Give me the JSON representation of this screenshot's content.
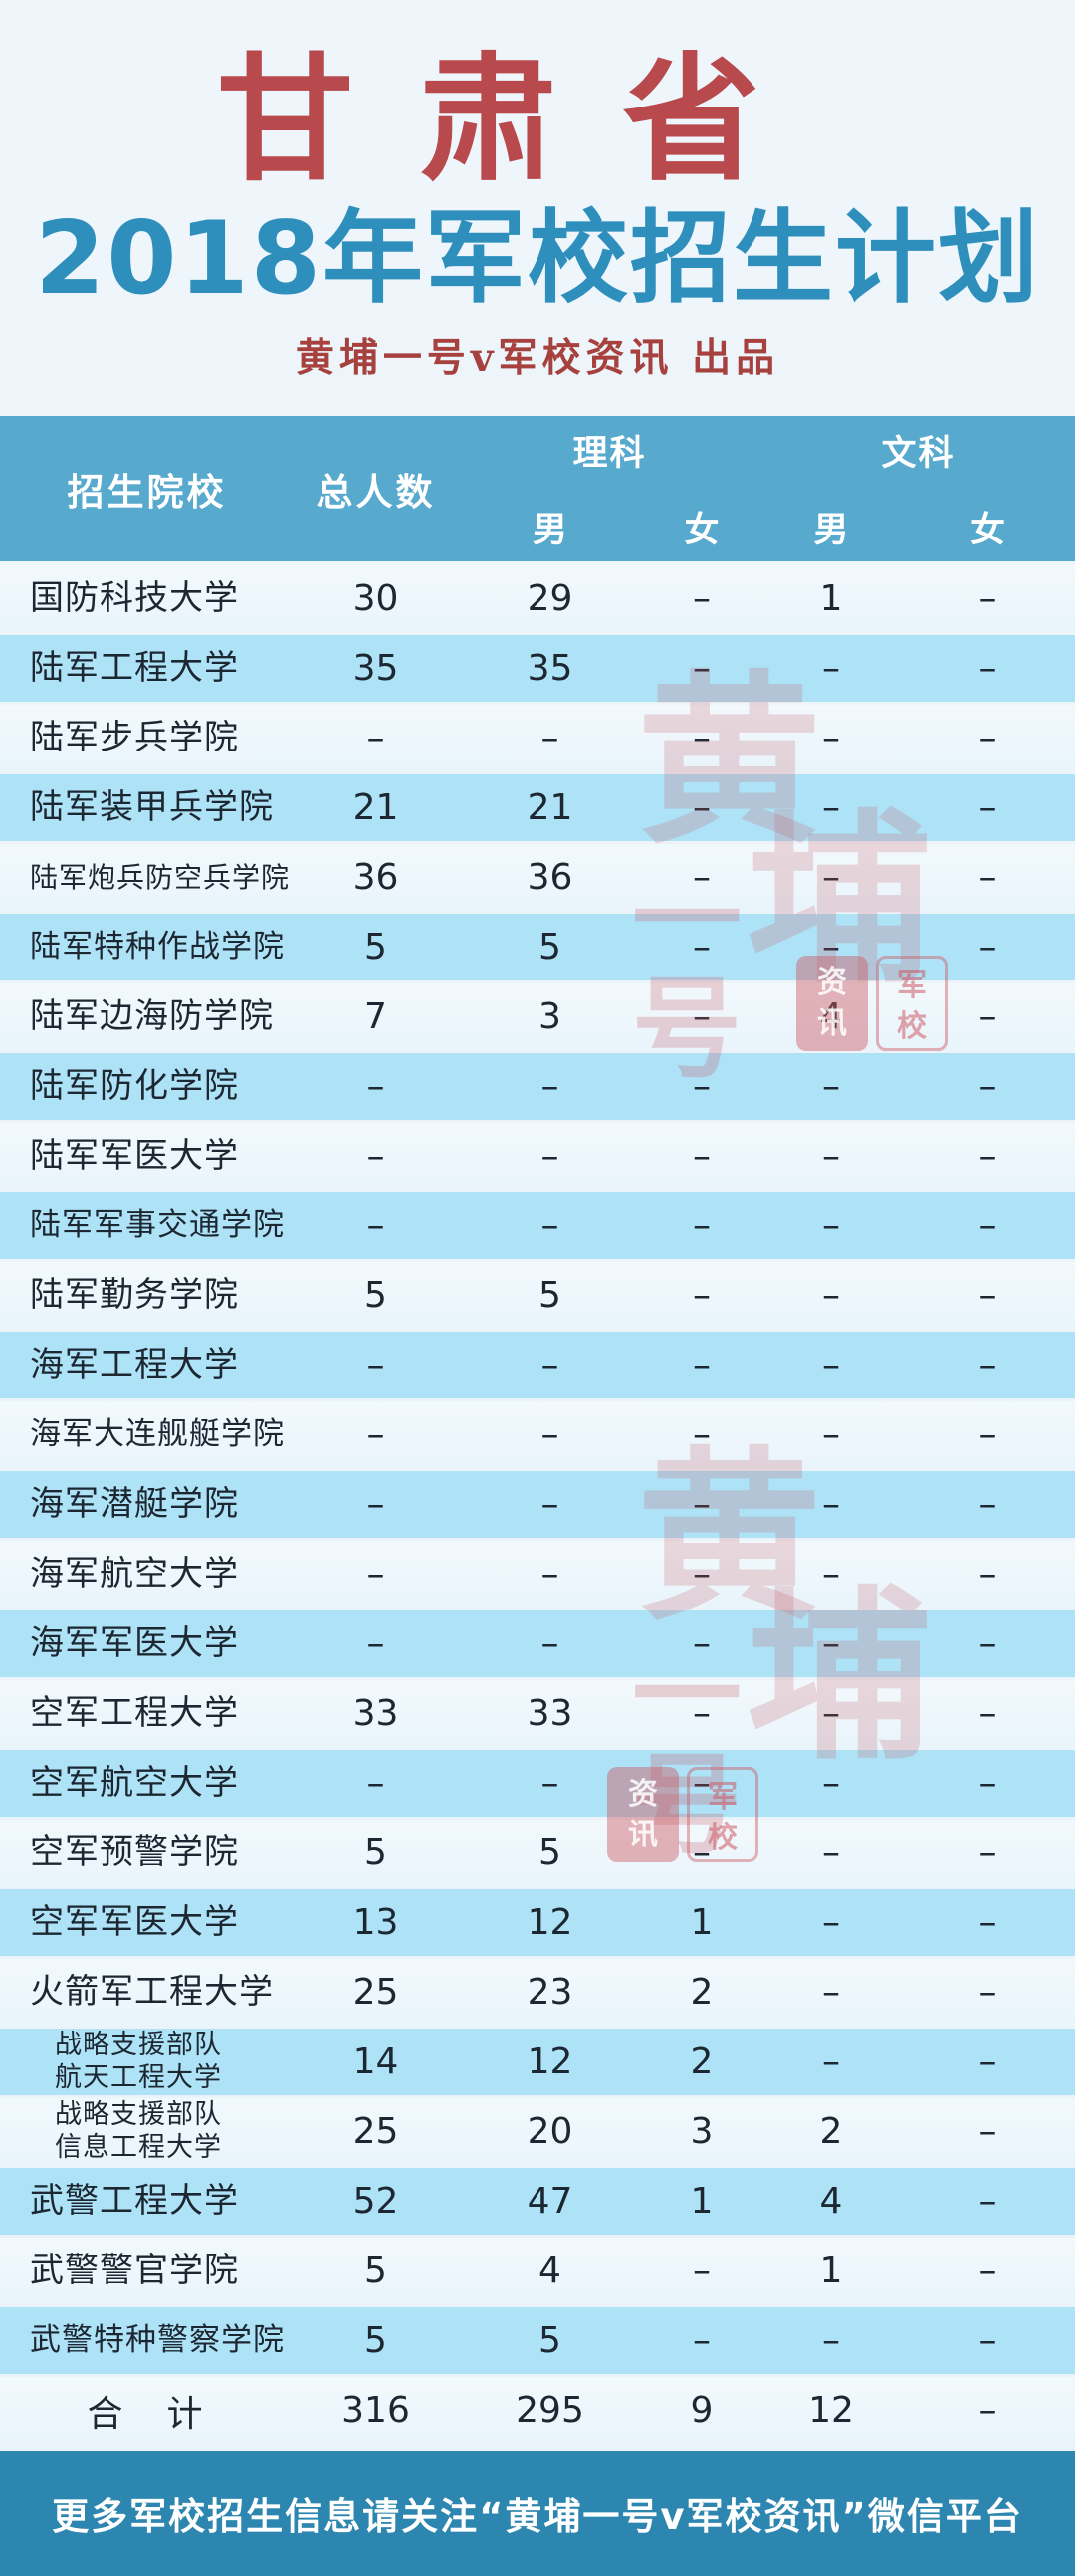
{
  "header": {
    "title": "甘肃省",
    "subtitle": "2018年军校招生计划",
    "byline": "黄埔一号v军校资讯  出品"
  },
  "table": {
    "col_school": "招生院校",
    "col_total": "总人数",
    "col_sci": "理科",
    "col_art": "文科",
    "col_male": "男",
    "col_female": "女"
  },
  "chart_data": {
    "type": "table",
    "title": "甘肃省2018年军校招生计划",
    "columns": [
      "招生院校",
      "总人数",
      "理科男",
      "理科女",
      "文科男",
      "文科女"
    ],
    "rows": [
      [
        "国防科技大学",
        "30",
        "29",
        "–",
        "1",
        "–"
      ],
      [
        "陆军工程大学",
        "35",
        "35",
        "–",
        "–",
        "–"
      ],
      [
        "陆军步兵学院",
        "–",
        "–",
        "–",
        "–",
        "–"
      ],
      [
        "陆军装甲兵学院",
        "21",
        "21",
        "–",
        "–",
        "–"
      ],
      [
        "陆军炮兵防空兵学院",
        "36",
        "36",
        "–",
        "–",
        "–"
      ],
      [
        "陆军特种作战学院",
        "5",
        "5",
        "–",
        "–",
        "–"
      ],
      [
        "陆军边海防学院",
        "7",
        "3",
        "–",
        "4",
        "–"
      ],
      [
        "陆军防化学院",
        "–",
        "–",
        "–",
        "–",
        "–"
      ],
      [
        "陆军军医大学",
        "–",
        "–",
        "–",
        "–",
        "–"
      ],
      [
        "陆军军事交通学院",
        "–",
        "–",
        "–",
        "–",
        "–"
      ],
      [
        "陆军勤务学院",
        "5",
        "5",
        "–",
        "–",
        "–"
      ],
      [
        "海军工程大学",
        "–",
        "–",
        "–",
        "–",
        "–"
      ],
      [
        "海军大连舰艇学院",
        "–",
        "–",
        "–",
        "–",
        "–"
      ],
      [
        "海军潜艇学院",
        "–",
        "–",
        "–",
        "–",
        "–"
      ],
      [
        "海军航空大学",
        "–",
        "–",
        "–",
        "–",
        "–"
      ],
      [
        "海军军医大学",
        "–",
        "–",
        "–",
        "–",
        "–"
      ],
      [
        "空军工程大学",
        "33",
        "33",
        "–",
        "–",
        "–"
      ],
      [
        "空军航空大学",
        "–",
        "–",
        "–",
        "–",
        "–"
      ],
      [
        "空军预警学院",
        "5",
        "5",
        "–",
        "–",
        "–"
      ],
      [
        "空军军医大学",
        "13",
        "12",
        "1",
        "–",
        "–"
      ],
      [
        "火箭军工程大学",
        "25",
        "23",
        "2",
        "–",
        "–"
      ],
      [
        "战略支援部队\n航天工程大学",
        "14",
        "12",
        "2",
        "–",
        "–"
      ],
      [
        "战略支援部队\n信息工程大学",
        "25",
        "20",
        "3",
        "2",
        "–"
      ],
      [
        "武警工程大学",
        "52",
        "47",
        "1",
        "4",
        "–"
      ],
      [
        "武警警官学院",
        "5",
        "4",
        "–",
        "1",
        "–"
      ],
      [
        "武警特种警察学院",
        "5",
        "5",
        "–",
        "–",
        "–"
      ]
    ],
    "total_row": [
      "合　计",
      "316",
      "295",
      "9",
      "12",
      "–"
    ]
  },
  "footer": {
    "text": "更多军校招生信息请关注“黄埔一号v军校资讯”微信平台"
  },
  "watermark": {
    "char1": "黄",
    "char2": "埔",
    "char34": "一号",
    "seal_left": "资\n讯",
    "seal_right": "军\n校"
  },
  "colors": {
    "title_red": "#B8494C",
    "subtitle_blue": "#2E8FBC",
    "byline_red": "#A6413E",
    "table_header_blue": "#58A9CE",
    "row_light": "#EFF7FC",
    "row_blue": "#AEE2F6",
    "footer_blue": "#2C86AF",
    "text_dark": "#1C2732",
    "watermark_pink": "#C65A64"
  }
}
